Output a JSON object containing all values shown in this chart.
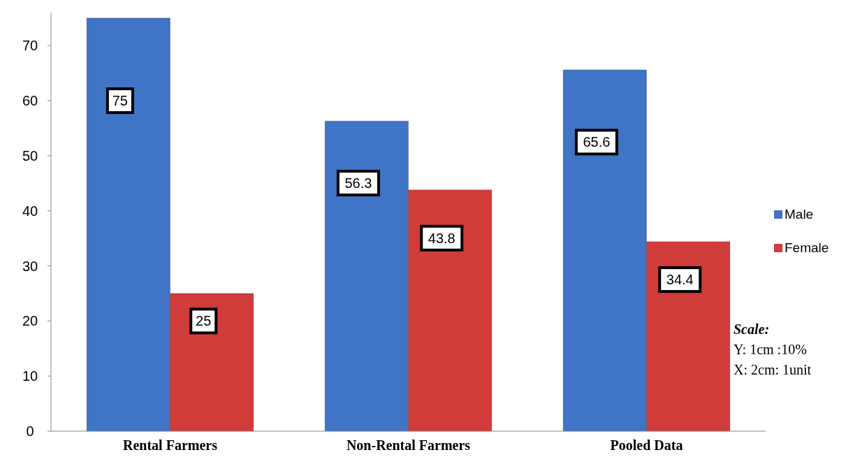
{
  "chart_data": {
    "type": "bar",
    "categories": [
      "Rental Farmers",
      "Non-Rental Farmers",
      "Pooled Data"
    ],
    "series": [
      {
        "name": "Male",
        "color": "#3f74c6",
        "values": [
          75,
          56.3,
          65.6
        ]
      },
      {
        "name": "Female",
        "color": "#d03c39",
        "values": [
          25,
          43.8,
          34.4
        ]
      }
    ],
    "ylim": [
      0,
      76
    ],
    "yticks": [
      0,
      10,
      20,
      30,
      40,
      50,
      60,
      70
    ],
    "grid": false,
    "legend": "right",
    "data_labels": true,
    "annotations": [
      "Scale:",
      "Y: 1cm :10%",
      "X: 2cm: 1unit"
    ]
  }
}
